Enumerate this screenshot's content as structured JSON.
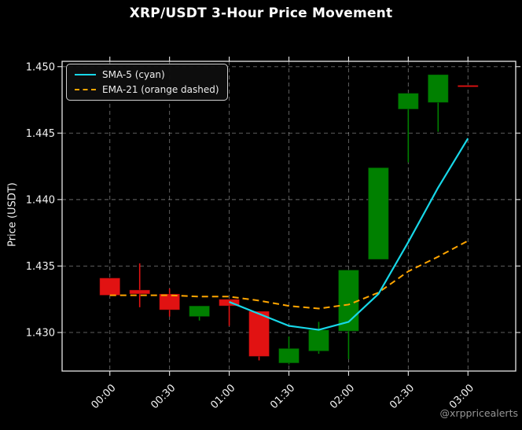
{
  "watermark": "@xrppricealerts",
  "chart_data": {
    "type": "candlestick",
    "title": "XRP/USDT 3-Hour Price Movement",
    "xlabel": "",
    "ylabel": "Price (USDT)",
    "grid": true,
    "legend_position": "upper left",
    "interval_minutes": 15,
    "x_tick_labels": [
      "00:00",
      "00:30",
      "01:00",
      "01:30",
      "02:00",
      "02:30",
      "03:00"
    ],
    "x_tick_minutes": [
      0,
      30,
      60,
      90,
      120,
      150,
      180
    ],
    "y_tick_labels": [
      "1.430",
      "1.435",
      "1.440",
      "1.445",
      "1.450"
    ],
    "y_tick_values": [
      1.43,
      1.435,
      1.44,
      1.445,
      1.45
    ],
    "ylim": [
      1.4271,
      1.4504
    ],
    "xlim_minutes": [
      -24,
      204
    ],
    "candles": [
      {
        "time": "00:00",
        "open": 1.4341,
        "high": 1.4341,
        "low": 1.4328,
        "close": 1.4328,
        "direction": "down"
      },
      {
        "time": "00:15",
        "open": 1.4332,
        "high": 1.4352,
        "low": 1.4319,
        "close": 1.4329,
        "direction": "down"
      },
      {
        "time": "00:30",
        "open": 1.4329,
        "high": 1.4333,
        "low": 1.4312,
        "close": 1.4317,
        "direction": "down"
      },
      {
        "time": "00:45",
        "open": 1.4312,
        "high": 1.432,
        "low": 1.4309,
        "close": 1.432,
        "direction": "up"
      },
      {
        "time": "01:00",
        "open": 1.4325,
        "high": 1.4325,
        "low": 1.4305,
        "close": 1.432,
        "direction": "down"
      },
      {
        "time": "01:15",
        "open": 1.4316,
        "high": 1.4316,
        "low": 1.4279,
        "close": 1.4282,
        "direction": "down"
      },
      {
        "time": "01:30",
        "open": 1.4277,
        "high": 1.4297,
        "low": 1.4276,
        "close": 1.4288,
        "direction": "up"
      },
      {
        "time": "01:45",
        "open": 1.4286,
        "high": 1.4308,
        "low": 1.4284,
        "close": 1.4302,
        "direction": "up"
      },
      {
        "time": "02:00",
        "open": 1.4301,
        "high": 1.4347,
        "low": 1.428,
        "close": 1.4347,
        "direction": "up"
      },
      {
        "time": "02:15",
        "open": 1.4355,
        "high": 1.4424,
        "low": 1.4355,
        "close": 1.4424,
        "direction": "up"
      },
      {
        "time": "02:30",
        "open": 1.4468,
        "high": 1.448,
        "low": 1.4428,
        "close": 1.448,
        "direction": "up"
      },
      {
        "time": "02:45",
        "open": 1.4473,
        "high": 1.4494,
        "low": 1.4451,
        "close": 1.4494,
        "direction": "up"
      },
      {
        "time": "03:00",
        "open": 1.4486,
        "high": 1.4486,
        "low": 1.4486,
        "close": 1.4486,
        "direction": "down"
      }
    ],
    "series": [
      {
        "name": "SMA-5",
        "legend_label": "SMA-5 (cyan)",
        "color": "#17d7e8",
        "style": "solid",
        "start_time": "01:00",
        "values": [
          1.4323,
          1.4314,
          1.4305,
          1.4302,
          1.4308,
          1.4329,
          1.4368,
          1.4409,
          1.4446
        ]
      },
      {
        "name": "EMA-21",
        "legend_label": "EMA-21 (orange dashed)",
        "color": "#ffa500",
        "style": "dashed",
        "start_time": "00:00",
        "values": [
          1.4328,
          1.4328,
          1.4328,
          1.4327,
          1.4327,
          1.4324,
          1.432,
          1.4318,
          1.4321,
          1.433,
          1.4346,
          1.4357,
          1.4369
        ]
      }
    ],
    "colors": {
      "background": "#000000",
      "up": "#008000",
      "down": "#e11212",
      "grid": "#d2d2d2",
      "border": "#e6e6e6",
      "text": "#f2f2f2",
      "watermark": "#969696"
    }
  }
}
